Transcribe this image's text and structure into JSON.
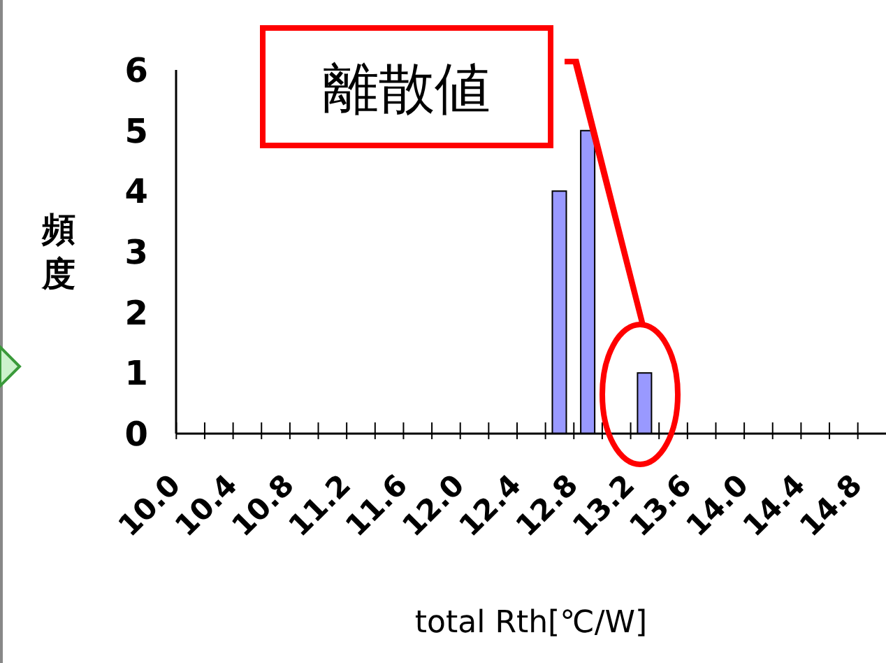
{
  "chart_data": {
    "type": "bar",
    "xlabel": "total Rth[℃/W]",
    "ylabel": "頻度",
    "categories": [
      "10.0",
      null,
      "10.4",
      null,
      "10.8",
      null,
      "11.2",
      null,
      "11.6",
      null,
      "12.0",
      null,
      "12.4",
      null,
      "12.8",
      null,
      "13.2",
      null,
      "13.6",
      null,
      "14.0",
      null,
      "14.4",
      null,
      "14.8"
    ],
    "values": [
      0,
      0,
      0,
      0,
      0,
      0,
      0,
      0,
      0,
      0,
      0,
      0,
      0,
      4,
      5,
      0,
      1,
      0,
      0,
      0,
      0,
      0,
      0,
      0,
      0
    ],
    "color": "#9999ff",
    "ylim": [
      0,
      6
    ],
    "yticks": [
      0,
      1,
      2,
      3,
      4,
      5,
      6
    ],
    "annotations": [
      "離散値"
    ]
  }
}
